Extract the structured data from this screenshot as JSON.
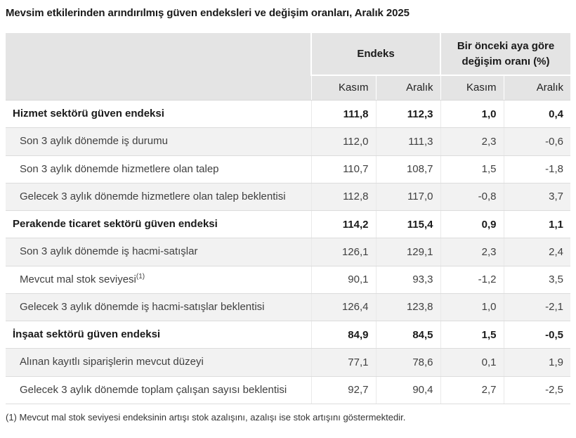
{
  "title": "Mevsim etkilerinden arındırılmış güven endeksleri ve değişim oranları, Aralık 2025",
  "table": {
    "col_groups": [
      {
        "label": "Endeks"
      },
      {
        "label": "Bir önceki aya göre değişim oranı (%)"
      }
    ],
    "sub_headers": [
      "Kasım",
      "Aralık",
      "Kasım",
      "Aralık"
    ],
    "rows": [
      {
        "label": "Hizmet sektörü güven endeksi",
        "bold": true,
        "values": [
          "111,8",
          "112,3",
          "1,0",
          "0,4"
        ]
      },
      {
        "label": "Son 3 aylık dönemde iş durumu",
        "bold": false,
        "values": [
          "112,0",
          "111,3",
          "2,3",
          "-0,6"
        ]
      },
      {
        "label": "Son 3 aylık dönemde hizmetlere olan talep",
        "bold": false,
        "values": [
          "110,7",
          "108,7",
          "1,5",
          "-1,8"
        ]
      },
      {
        "label": "Gelecek 3 aylık dönemde hizmetlere olan talep beklentisi",
        "bold": false,
        "values": [
          "112,8",
          "117,0",
          "-0,8",
          "3,7"
        ]
      },
      {
        "label": "Perakende ticaret sektörü güven endeksi",
        "bold": true,
        "values": [
          "114,2",
          "115,4",
          "0,9",
          "1,1"
        ]
      },
      {
        "label": "Son 3 aylık dönemde iş hacmi-satışlar",
        "bold": false,
        "values": [
          "126,1",
          "129,1",
          "2,3",
          "2,4"
        ]
      },
      {
        "label": "Mevcut mal stok seviyesi",
        "superscript": "(1)",
        "bold": false,
        "values": [
          "90,1",
          "93,3",
          "-1,2",
          "3,5"
        ]
      },
      {
        "label": "Gelecek 3 aylık dönemde iş hacmi-satışlar beklentisi",
        "bold": false,
        "values": [
          "126,4",
          "123,8",
          "1,0",
          "-2,1"
        ]
      },
      {
        "label": "İnşaat sektörü güven endeksi",
        "bold": true,
        "values": [
          "84,9",
          "84,5",
          "1,5",
          "-0,5"
        ]
      },
      {
        "label": "Alınan kayıtlı siparişlerin mevcut düzeyi",
        "bold": false,
        "values": [
          "77,1",
          "78,6",
          "0,1",
          "1,9"
        ]
      },
      {
        "label": "Gelecek 3 aylık dönemde toplam çalışan sayısı beklentisi",
        "bold": false,
        "values": [
          "92,7",
          "90,4",
          "2,7",
          "-2,5"
        ]
      }
    ]
  },
  "footnote": "(1) Mevcut mal stok seviyesi endeksinin artışı stok azalışını, azalışı ise stok artışını göstermektedir.",
  "colors": {
    "header_bg": "#e4e4e4",
    "row_alt_bg": "#f2f2f2",
    "row_border": "#dcdcdc",
    "column_separator": "#e9e9e9",
    "text": "#404040",
    "heading_text": "#1a1a1a"
  }
}
